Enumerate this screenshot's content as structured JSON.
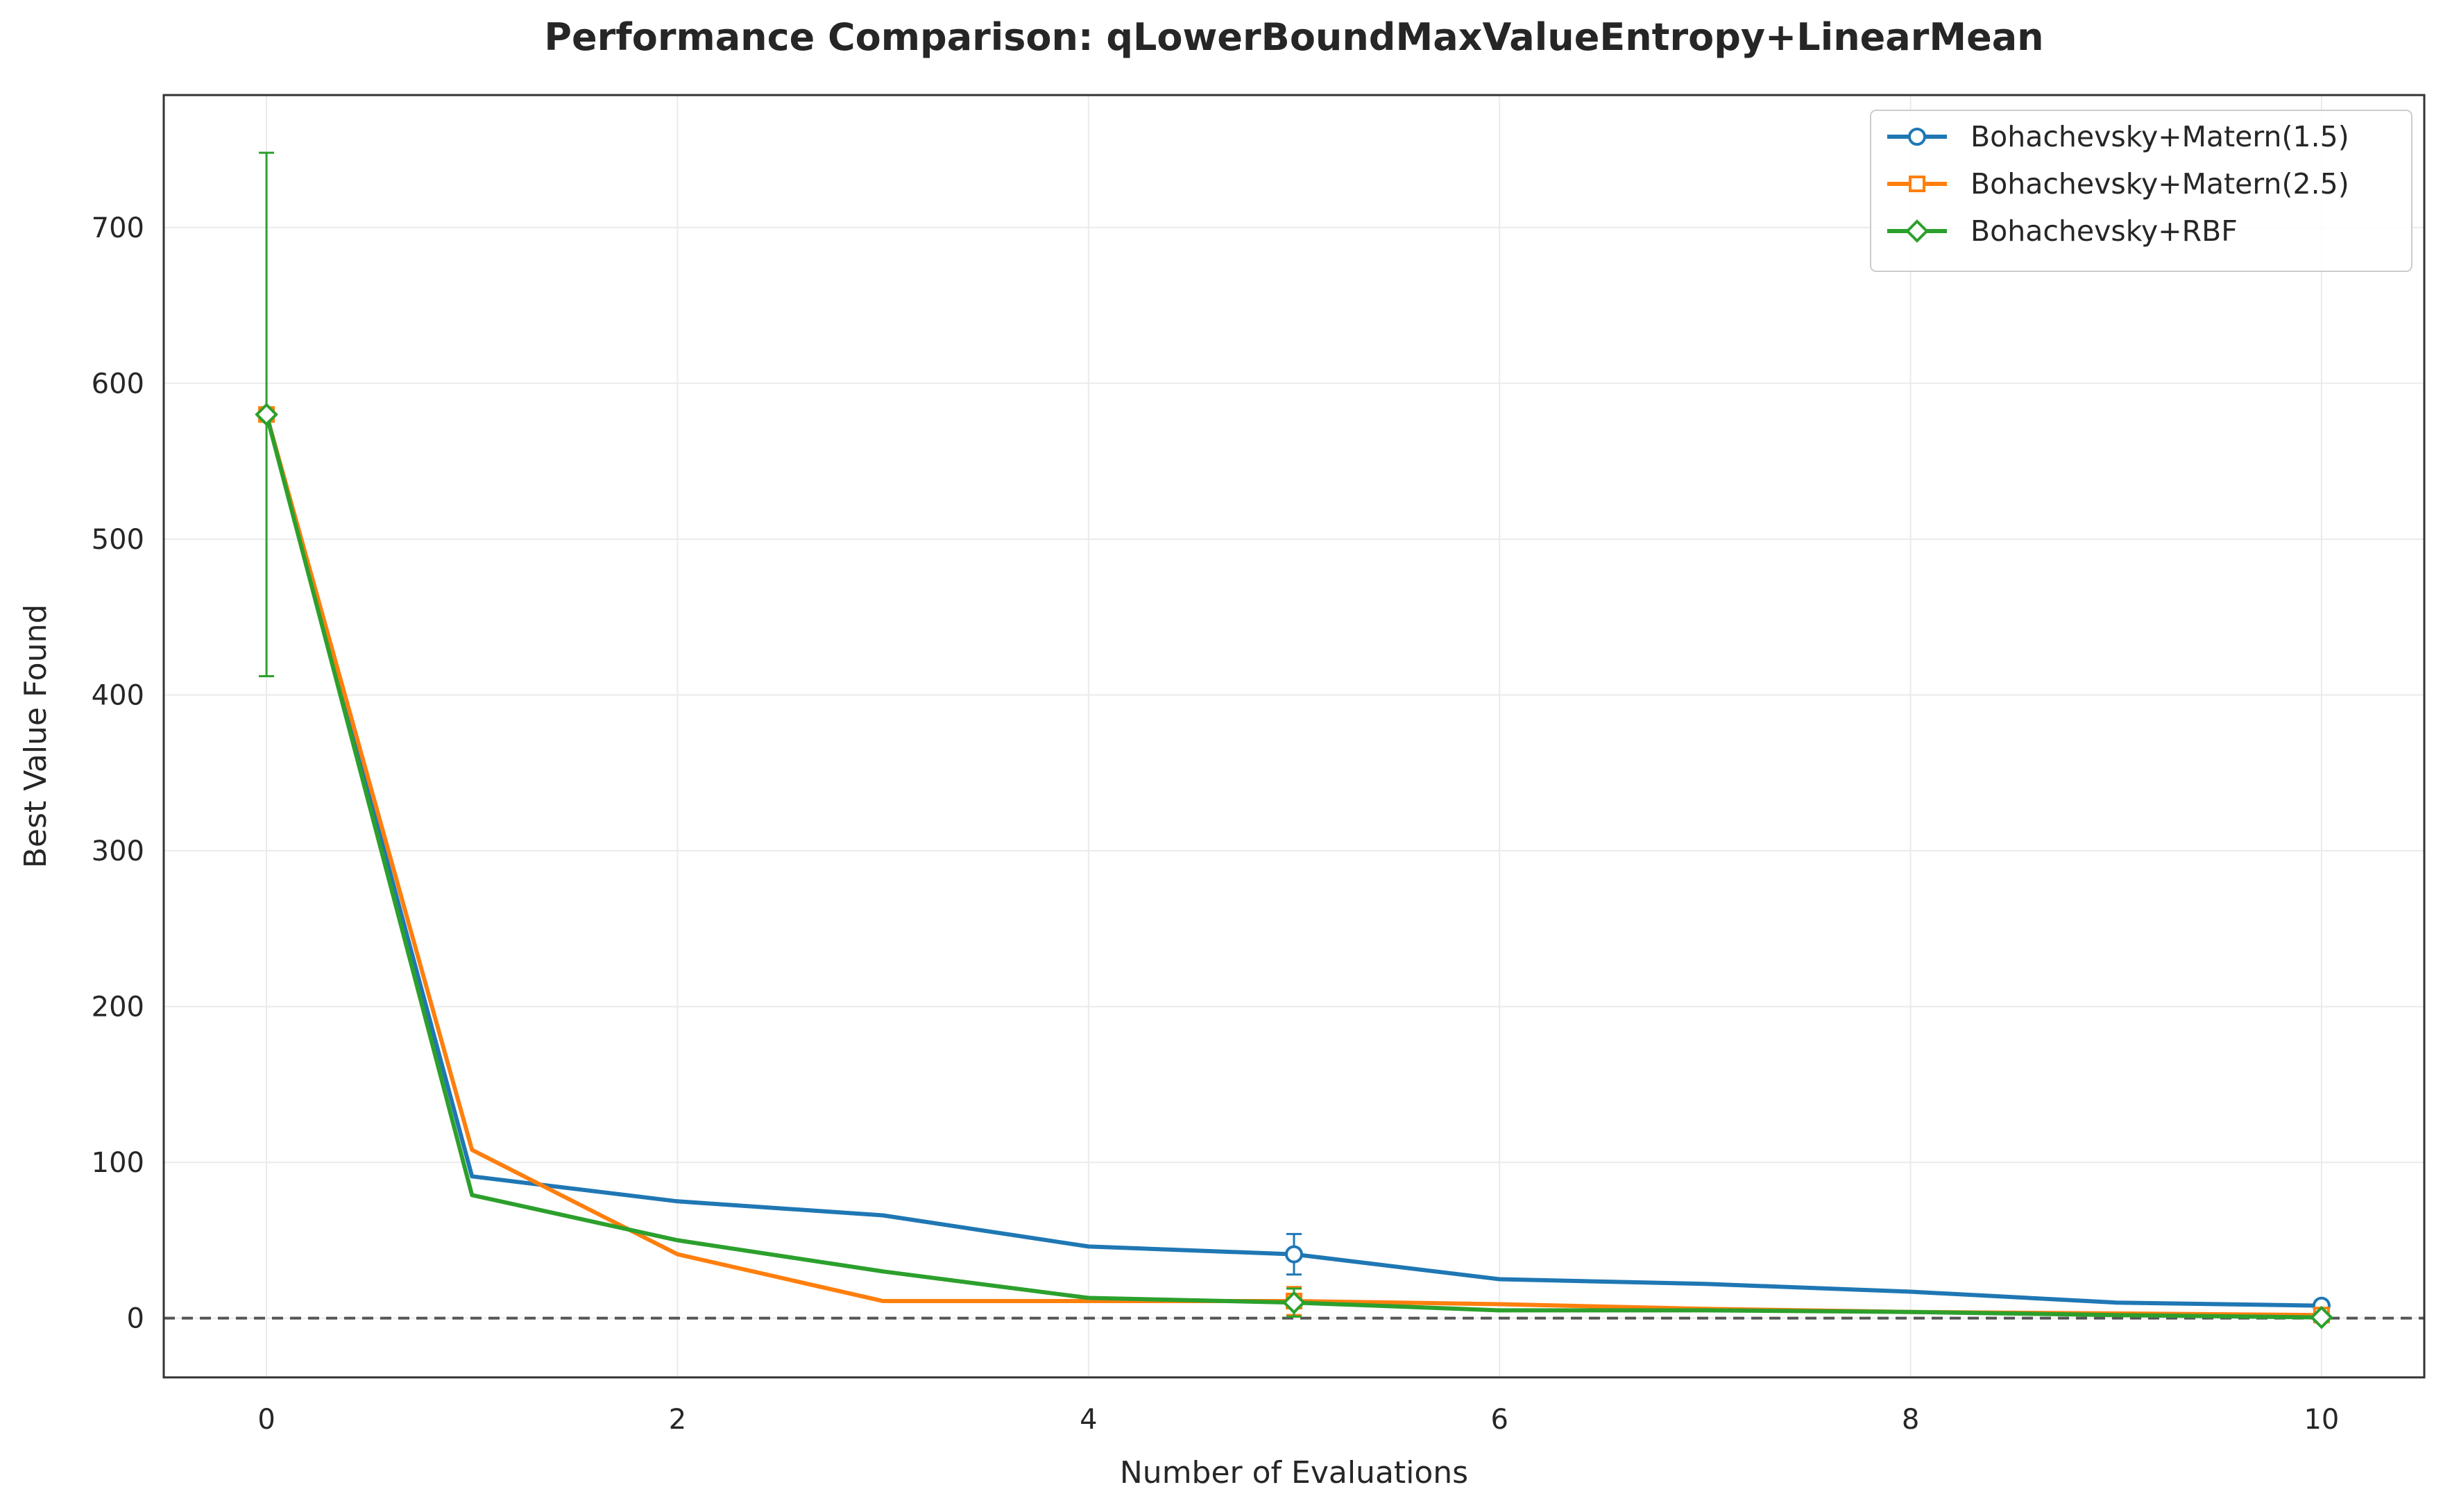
{
  "chart_data": {
    "type": "line",
    "title": "Performance Comparison: qLowerBoundMaxValueEntropy+LinearMean",
    "xlabel": "Number of Evaluations",
    "ylabel": "Best Value Found",
    "xlim": [
      -0.5,
      10.5
    ],
    "ylim": [
      -38,
      785
    ],
    "xticks": [
      0,
      2,
      4,
      6,
      8,
      10
    ],
    "yticks": [
      0,
      100,
      200,
      300,
      400,
      500,
      600,
      700
    ],
    "grid": true,
    "legend_position": "top-right",
    "reference_line": {
      "y": 0,
      "style": "dashed",
      "color": "#555555"
    },
    "x": [
      0,
      1,
      2,
      3,
      4,
      5,
      6,
      7,
      8,
      9,
      10
    ],
    "series": [
      {
        "name": "Bohachevsky+Matern(1.5)",
        "color": "#1f77b4",
        "marker": "circle",
        "values": [
          580,
          91,
          75,
          66,
          46,
          41,
          25,
          22,
          17,
          10,
          8
        ],
        "marker_x": [
          0,
          5,
          10
        ],
        "error_bars": [
          {
            "x": 5,
            "y": 41,
            "low": 28,
            "high": 54
          }
        ]
      },
      {
        "name": "Bohachevsky+Matern(2.5)",
        "color": "#ff7f0e",
        "marker": "square",
        "values": [
          580,
          108,
          41,
          11,
          11,
          11,
          9,
          6,
          4,
          3,
          2
        ],
        "marker_x": [
          0,
          5,
          10
        ],
        "error_bars": [
          {
            "x": 5,
            "y": 11,
            "low": 2,
            "high": 20
          }
        ]
      },
      {
        "name": "Bohachevsky+RBF",
        "color": "#2ca02c",
        "marker": "diamond",
        "values": [
          580,
          79,
          50,
          30,
          13,
          10,
          5,
          5,
          4,
          2,
          0.5
        ],
        "marker_x": [
          0,
          5,
          10
        ],
        "error_bars": [
          {
            "x": 0,
            "y": 580,
            "low": 412,
            "high": 748
          },
          {
            "x": 5,
            "y": 10,
            "low": 1,
            "high": 19
          }
        ]
      }
    ]
  }
}
